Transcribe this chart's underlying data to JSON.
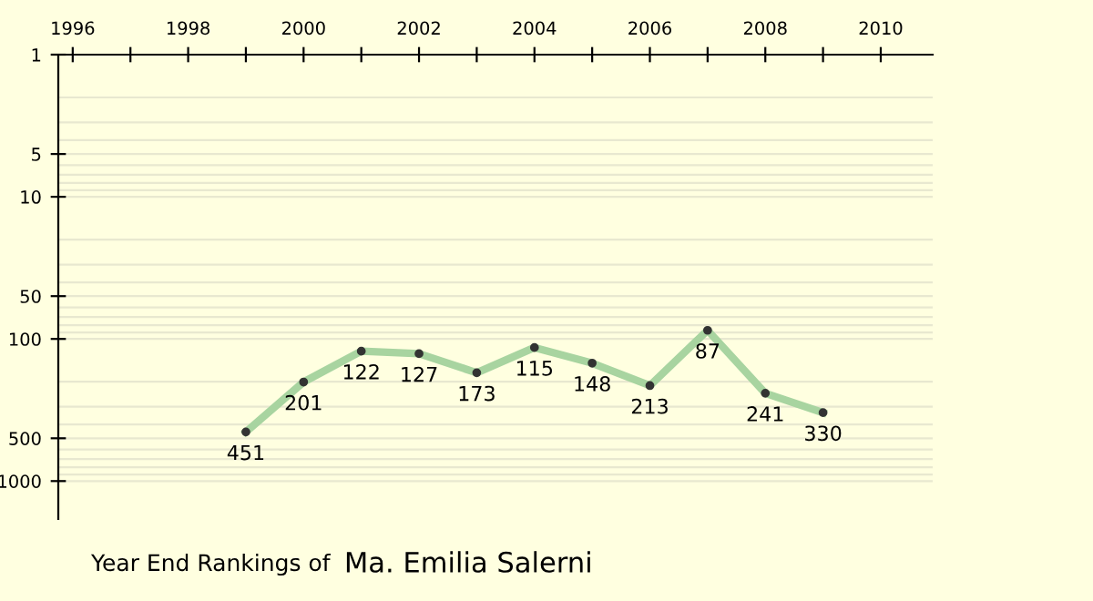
{
  "chart_data": {
    "type": "line",
    "title": "Year End Rankings of",
    "subtitle": "Ma. Emilia Salerni",
    "x": [
      1999,
      2000,
      2001,
      2002,
      2003,
      2004,
      2005,
      2006,
      2007,
      2008,
      2009
    ],
    "series": [
      {
        "color": "#a8d4a0",
        "values": [
          451,
          201,
          122,
          127,
          173,
          115,
          148,
          213,
          87,
          241,
          330
        ]
      }
    ],
    "log": "y",
    "ylim": [
      1850,
      1
    ],
    "yticks": [
      1,
      5,
      10,
      50,
      100,
      500,
      1000
    ],
    "xlim": [
      1995.75,
      2010.9
    ],
    "xticks": [
      1996,
      {
        "value": 1997,
        "label": null
      },
      1998,
      {
        "value": 1999,
        "label": null
      },
      2000,
      {
        "value": 2001,
        "label": null
      },
      2002,
      {
        "value": 2003,
        "label": null
      },
      2004,
      {
        "value": 2005,
        "label": null
      },
      2006,
      {
        "value": 2007,
        "label": null
      },
      2008,
      {
        "value": 2009,
        "label": null
      },
      2010
    ],
    "grid": "y",
    "marker": "circle",
    "line_style": "solid",
    "data_labels": true
  }
}
